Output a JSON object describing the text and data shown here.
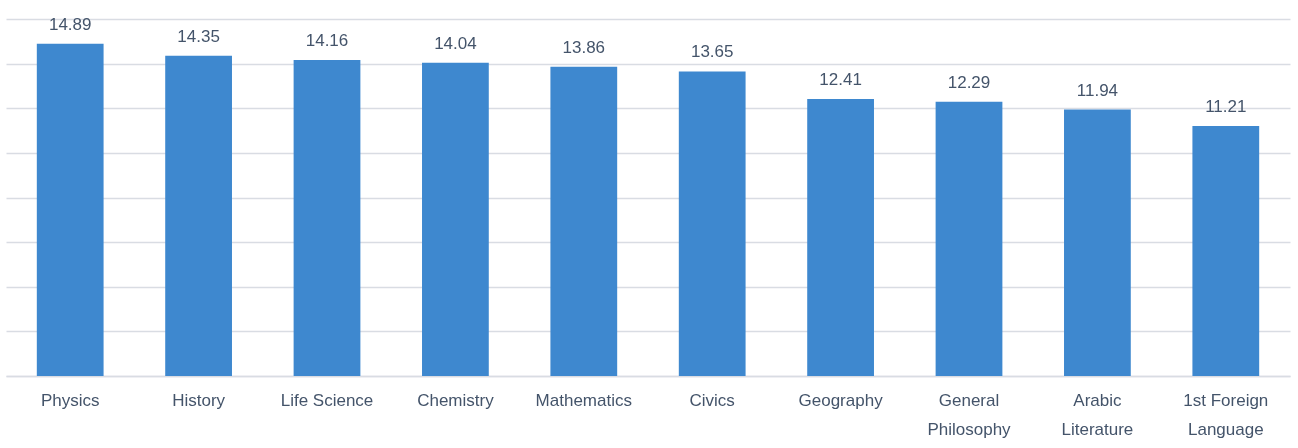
{
  "chart_data": {
    "type": "bar",
    "categories": [
      "Physics",
      "History",
      "Life Science",
      "Chemistry",
      "Mathematics",
      "Civics",
      "Geography",
      "General Philosophy",
      "Arabic Literature",
      "1st Foreign Language"
    ],
    "values": [
      14.89,
      14.35,
      14.16,
      14.04,
      13.86,
      13.65,
      12.41,
      12.29,
      11.94,
      11.21
    ],
    "color": "#3e88cf",
    "ylim": [
      0,
      16
    ],
    "yticks": [
      {
        "value": 0,
        "label": null
      },
      {
        "value": 2,
        "label": null
      },
      {
        "value": 4,
        "label": null
      },
      {
        "value": 6,
        "label": null
      },
      {
        "value": 8,
        "label": null
      },
      {
        "value": 10,
        "label": null
      },
      {
        "value": 12,
        "label": null
      },
      {
        "value": 14,
        "label": null
      },
      {
        "value": 16,
        "label": null
      }
    ],
    "grid": "y",
    "tick_labels": "x",
    "data_labels": true
  }
}
